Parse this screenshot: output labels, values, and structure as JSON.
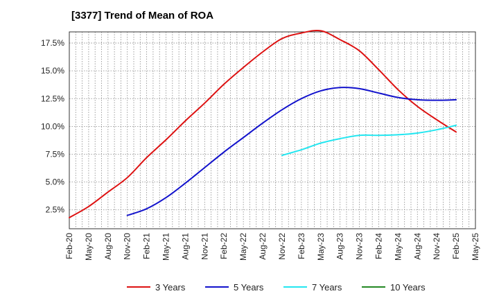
{
  "chart_data": {
    "type": "line",
    "title": "[3377]  Trend of Mean of ROA",
    "xlabel": "",
    "ylabel": "",
    "x_tick_labels": [
      "Feb-20",
      "May-20",
      "Aug-20",
      "Nov-20",
      "Feb-21",
      "May-21",
      "Aug-21",
      "Nov-21",
      "Feb-22",
      "May-22",
      "Aug-22",
      "Nov-22",
      "Feb-23",
      "May-23",
      "Aug-23",
      "Nov-23",
      "Feb-24",
      "May-24",
      "Aug-24",
      "Nov-24",
      "Feb-25",
      "May-25"
    ],
    "y_ticks": [
      2.5,
      5.0,
      7.5,
      10.0,
      12.5,
      15.0,
      17.5
    ],
    "y_tick_labels": [
      "2.5%",
      "5.0%",
      "7.5%",
      "10.0%",
      "12.5%",
      "15.0%",
      "17.5%"
    ],
    "ylim": [
      0.8,
      18.5
    ],
    "xlim_quarter_index": [
      0,
      21
    ],
    "grid": true,
    "legend_position": "bottom",
    "series": [
      {
        "name": "3 Years",
        "color": "#dd1111",
        "x": [
          0,
          1,
          2,
          3,
          4,
          5,
          6,
          7,
          8,
          9,
          10,
          11,
          12,
          13,
          14,
          15,
          16,
          17,
          18,
          19,
          20
        ],
        "values": [
          1.8,
          2.8,
          4.1,
          5.4,
          7.2,
          8.8,
          10.5,
          12.1,
          13.8,
          15.3,
          16.7,
          17.9,
          18.4,
          18.6,
          17.8,
          16.8,
          15.1,
          13.3,
          11.8,
          10.6,
          9.5
        ]
      },
      {
        "name": "5 Years",
        "color": "#1111cc",
        "x": [
          3,
          4,
          5,
          6,
          7,
          8,
          9,
          10,
          11,
          12,
          13,
          14,
          15,
          16,
          17,
          18,
          19,
          20
        ],
        "values": [
          2.0,
          2.6,
          3.6,
          4.9,
          6.3,
          7.7,
          9.0,
          10.3,
          11.5,
          12.5,
          13.2,
          13.5,
          13.4,
          13.0,
          12.6,
          12.4,
          12.35,
          12.4
        ]
      },
      {
        "name": "7 Years",
        "color": "#22e6f0",
        "x": [
          11,
          12,
          13,
          14,
          15,
          16,
          17,
          18,
          19,
          20
        ],
        "values": [
          7.4,
          7.9,
          8.5,
          8.9,
          9.2,
          9.2,
          9.25,
          9.4,
          9.7,
          10.1
        ]
      },
      {
        "name": "10 Years",
        "color": "#228822",
        "x": [],
        "values": []
      }
    ]
  }
}
